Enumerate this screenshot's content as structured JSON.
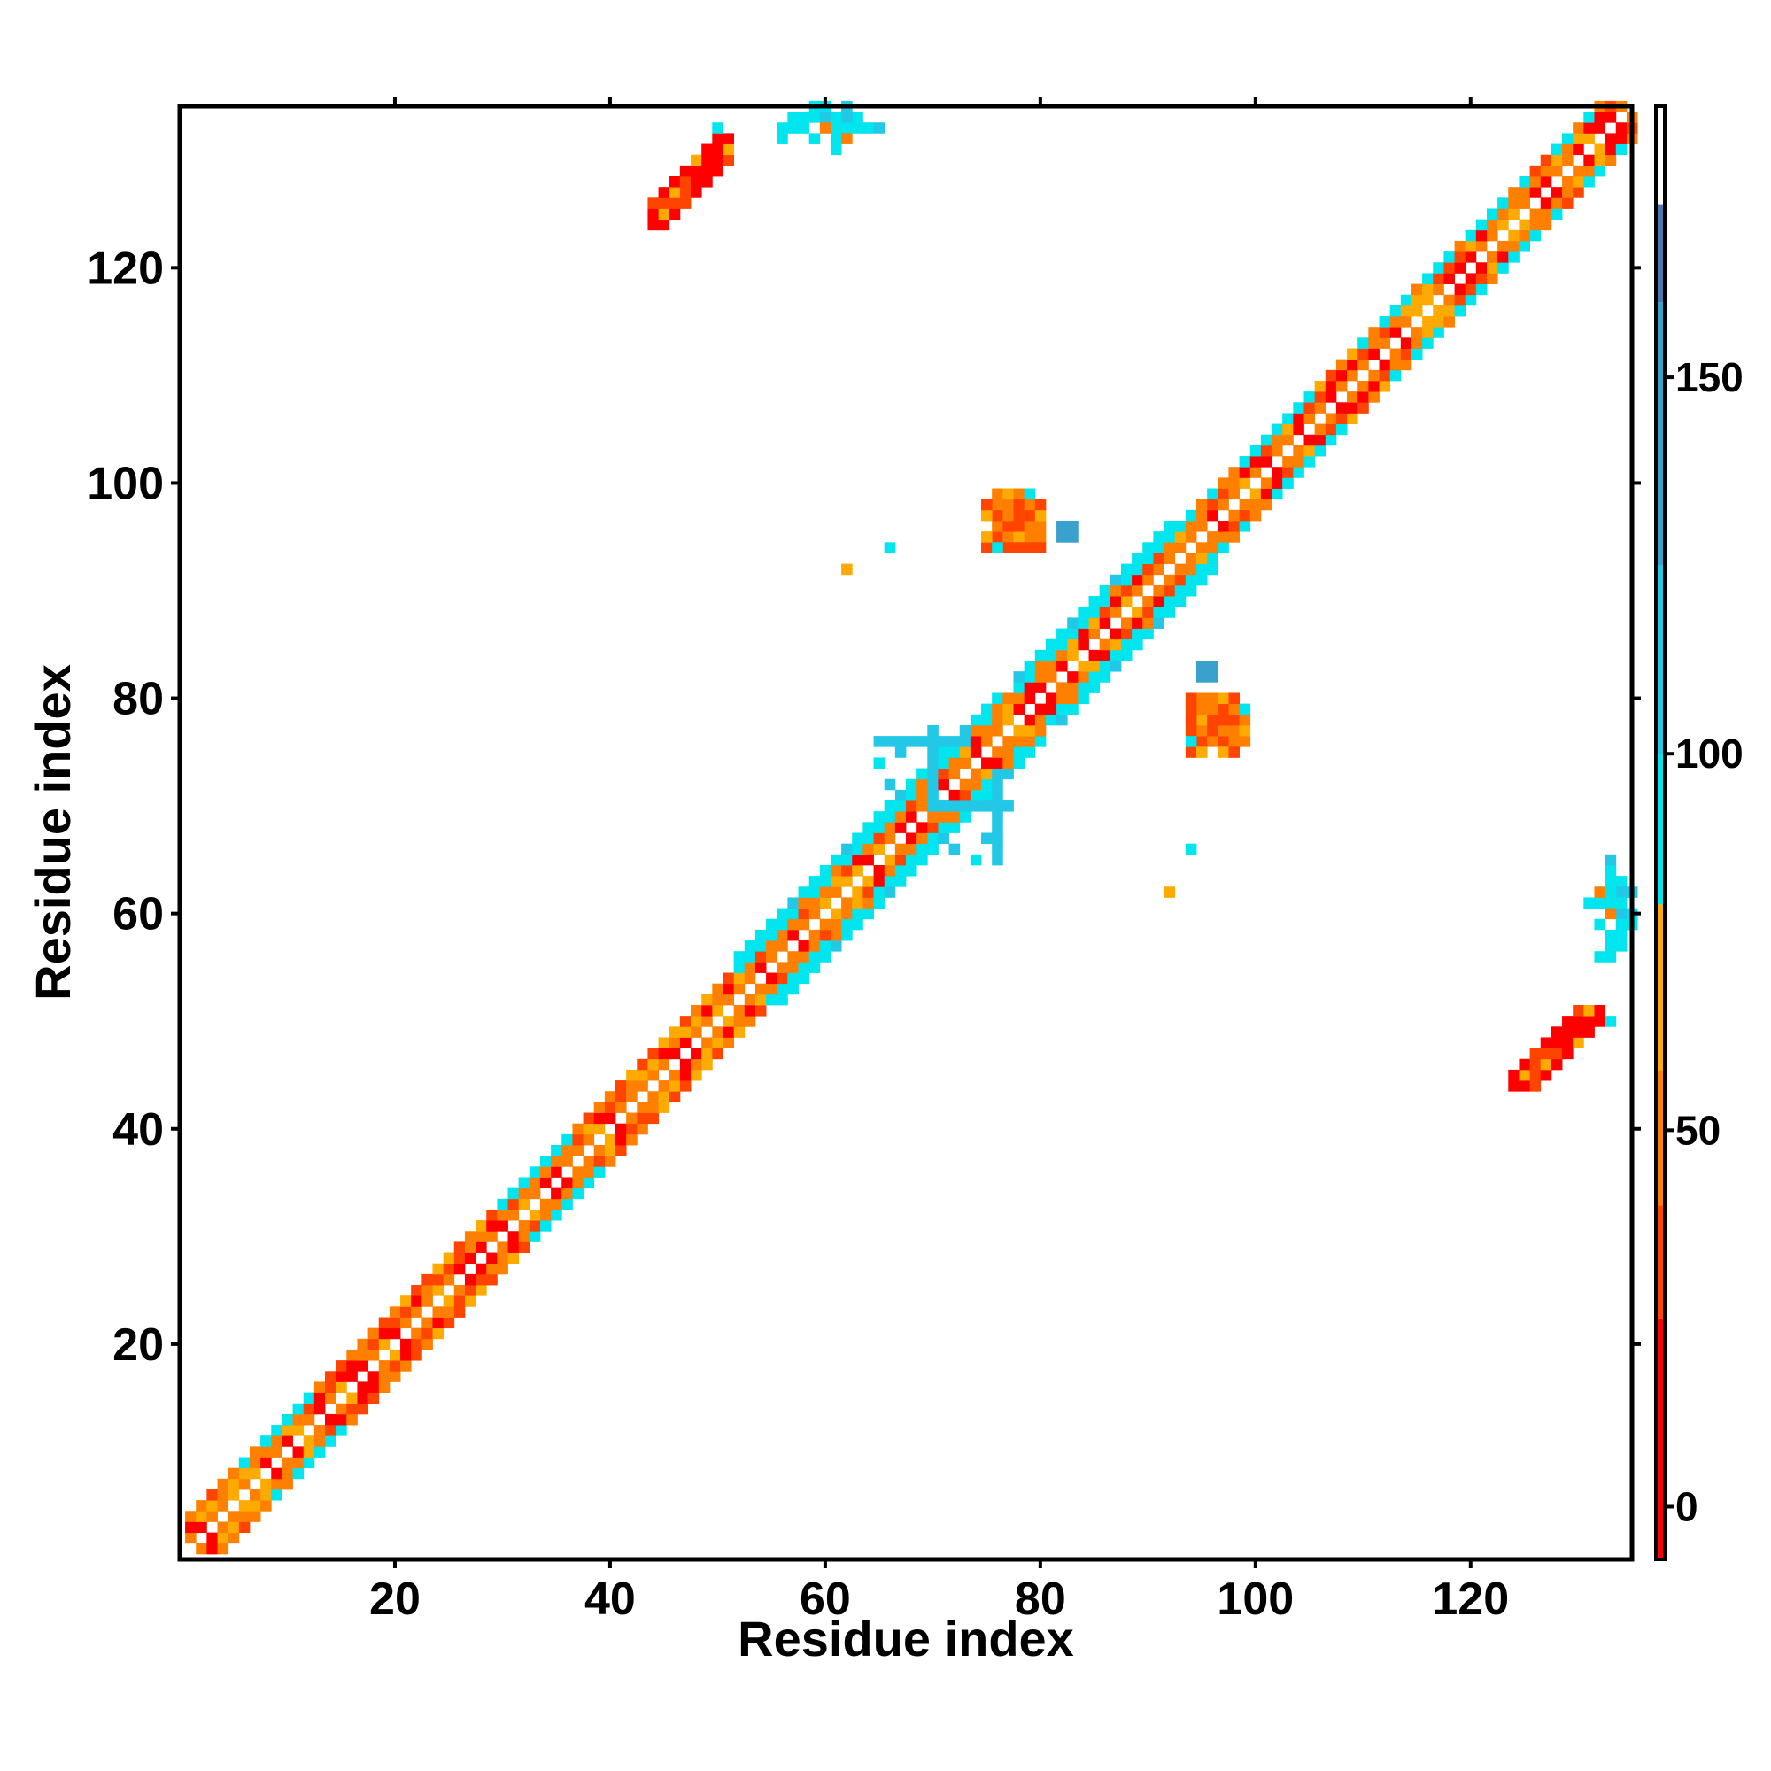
{
  "chart_data": {
    "type": "heatmap",
    "xlabel": "Residue index",
    "ylabel": "Residue index",
    "x_range": [
      1,
      135
    ],
    "y_range": [
      1,
      135
    ],
    "x_ticks": [
      20,
      40,
      60,
      80,
      100,
      120
    ],
    "y_ticks": [
      20,
      40,
      60,
      80,
      100,
      120
    ],
    "colorbar": {
      "range": [
        -7,
        186
      ],
      "ticks": [
        0,
        50,
        100,
        150
      ],
      "bands": [
        {
          "from": -7,
          "to": 25,
          "color": "#ff0000"
        },
        {
          "from": 25,
          "to": 40,
          "color": "#ff4400"
        },
        {
          "from": 40,
          "to": 58,
          "color": "#ff7f00"
        },
        {
          "from": 58,
          "to": 80,
          "color": "#ffaa00"
        },
        {
          "from": 80,
          "to": 100,
          "color": "#00e5ee"
        },
        {
          "from": 100,
          "to": 125,
          "color": "#22c8e6"
        },
        {
          "from": 125,
          "to": 160,
          "color": "#3aa0cc"
        },
        {
          "from": 160,
          "to": 173,
          "color": "#4a78ae"
        },
        {
          "from": 173,
          "to": 186,
          "color": "#ffffff"
        }
      ]
    },
    "matrix_note_value_levels": [
      5,
      30,
      50,
      70,
      90,
      110,
      140
    ]
  },
  "colors": {
    "background": "#ffffff",
    "axis": "#000000"
  }
}
